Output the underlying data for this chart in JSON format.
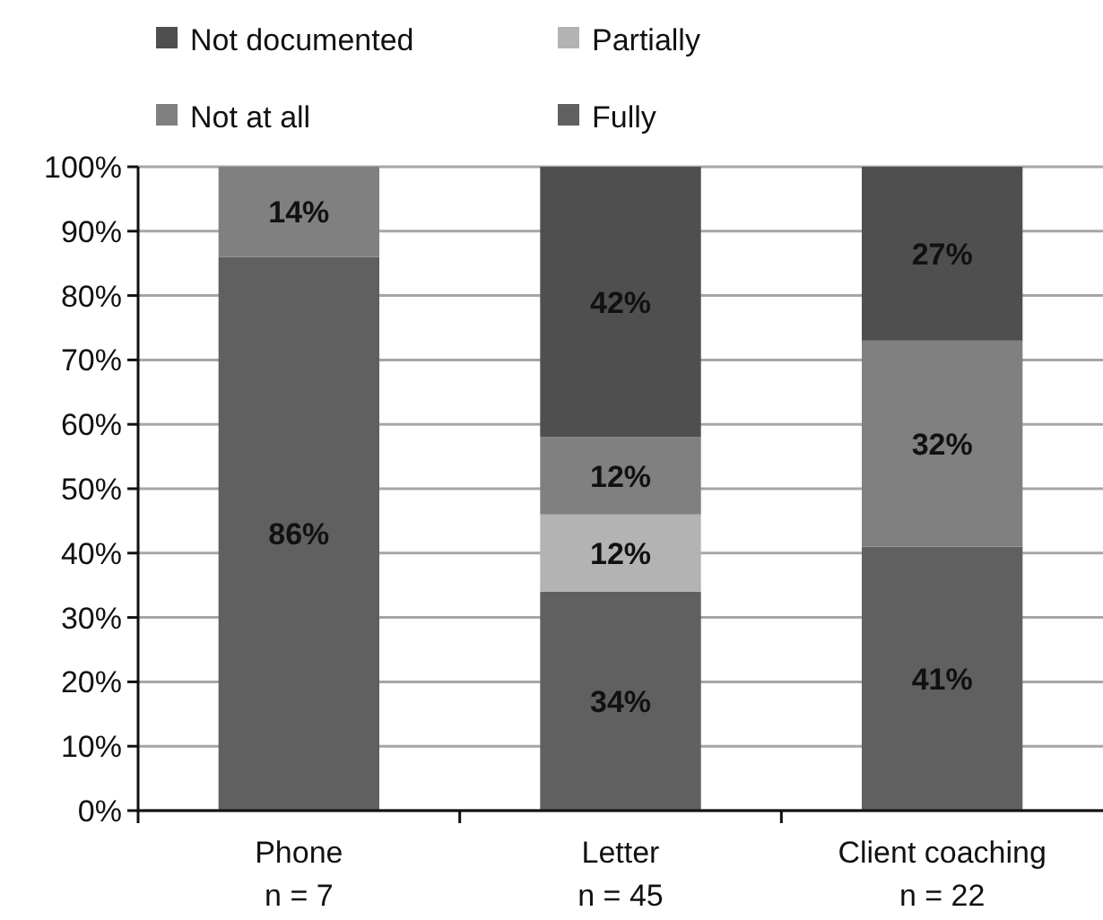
{
  "chart_data": {
    "type": "bar",
    "stacked": true,
    "categories": [
      "Phone\nn = 7",
      "Letter\nn = 45",
      "Client coaching\nn = 22"
    ],
    "series": [
      {
        "name": "Fully",
        "color": "#606060",
        "values": [
          86,
          34,
          41
        ],
        "value_labels": [
          "86%",
          "34%",
          "41%"
        ]
      },
      {
        "name": "Partially",
        "color": "#b3b3b3",
        "values": [
          0,
          12,
          0
        ],
        "value_labels": [
          null,
          "12%",
          null
        ]
      },
      {
        "name": "Not at all",
        "color": "#808080",
        "values": [
          14,
          12,
          32
        ],
        "value_labels": [
          "14%",
          "12%",
          "32%"
        ]
      },
      {
        "name": "Not documented",
        "color": "#4f4f4f",
        "values": [
          0,
          42,
          27
        ],
        "value_labels": [
          null,
          "42%",
          "27%"
        ]
      }
    ],
    "ylim": [
      0,
      100
    ],
    "yticks": [
      {
        "value": 0,
        "label": "0%"
      },
      {
        "value": 10,
        "label": "10%"
      },
      {
        "value": 20,
        "label": "20%"
      },
      {
        "value": 30,
        "label": "30%"
      },
      {
        "value": 40,
        "label": "40%"
      },
      {
        "value": 50,
        "label": "50%"
      },
      {
        "value": 60,
        "label": "60%"
      },
      {
        "value": 70,
        "label": "70%"
      },
      {
        "value": 80,
        "label": "80%"
      },
      {
        "value": 90,
        "label": "90%"
      },
      {
        "value": 100,
        "label": "100%"
      }
    ],
    "grid": "y",
    "legend": "top"
  }
}
